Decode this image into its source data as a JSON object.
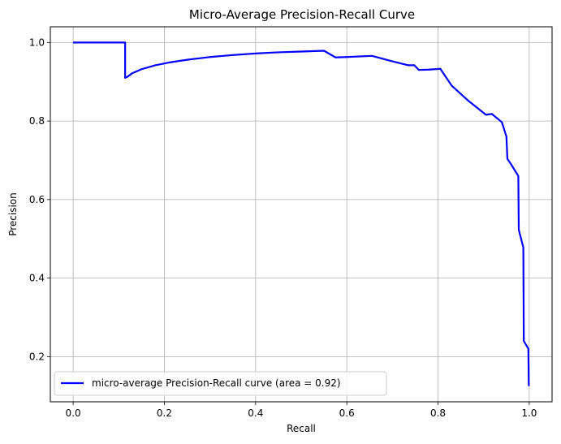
{
  "chart_data": {
    "type": "line",
    "title": "Micro-Average Precision-Recall Curve",
    "xlabel": "Recall",
    "ylabel": "Precision",
    "xlim": [
      -0.05,
      1.05
    ],
    "ylim": [
      0.085,
      1.04
    ],
    "xticks": [
      0.0,
      0.2,
      0.4,
      0.6,
      0.8,
      1.0
    ],
    "xtick_labels": [
      "0.0",
      "0.2",
      "0.4",
      "0.6",
      "0.8",
      "1.0"
    ],
    "yticks": [
      0.2,
      0.4,
      0.6,
      0.8,
      1.0
    ],
    "ytick_labels": [
      "0.2",
      "0.4",
      "0.6",
      "0.8",
      "1.0"
    ],
    "grid": true,
    "legend_position": "lower-left",
    "series": [
      {
        "name": "micro-average Precision-Recall curve (area = 0.92)",
        "color": "#0000ff",
        "x": [
          0.0,
          0.114,
          0.114,
          0.118,
          0.13,
          0.15,
          0.18,
          0.21,
          0.25,
          0.3,
          0.35,
          0.4,
          0.45,
          0.5,
          0.55,
          0.575,
          0.6,
          0.655,
          0.7,
          0.735,
          0.748,
          0.758,
          0.78,
          0.805,
          0.83,
          0.865,
          0.905,
          0.918,
          0.94,
          0.95,
          0.952,
          0.96,
          0.976,
          0.977,
          0.987,
          0.988,
          0.998,
          0.999
        ],
        "y": [
          1.0,
          1.0,
          0.91,
          0.912,
          0.922,
          0.932,
          0.942,
          0.949,
          0.956,
          0.963,
          0.968,
          0.972,
          0.975,
          0.977,
          0.979,
          0.962,
          0.963,
          0.966,
          0.952,
          0.942,
          0.942,
          0.93,
          0.931,
          0.933,
          0.89,
          0.853,
          0.816,
          0.818,
          0.797,
          0.76,
          0.704,
          0.69,
          0.66,
          0.523,
          0.478,
          0.24,
          0.22,
          0.125
        ]
      }
    ]
  }
}
